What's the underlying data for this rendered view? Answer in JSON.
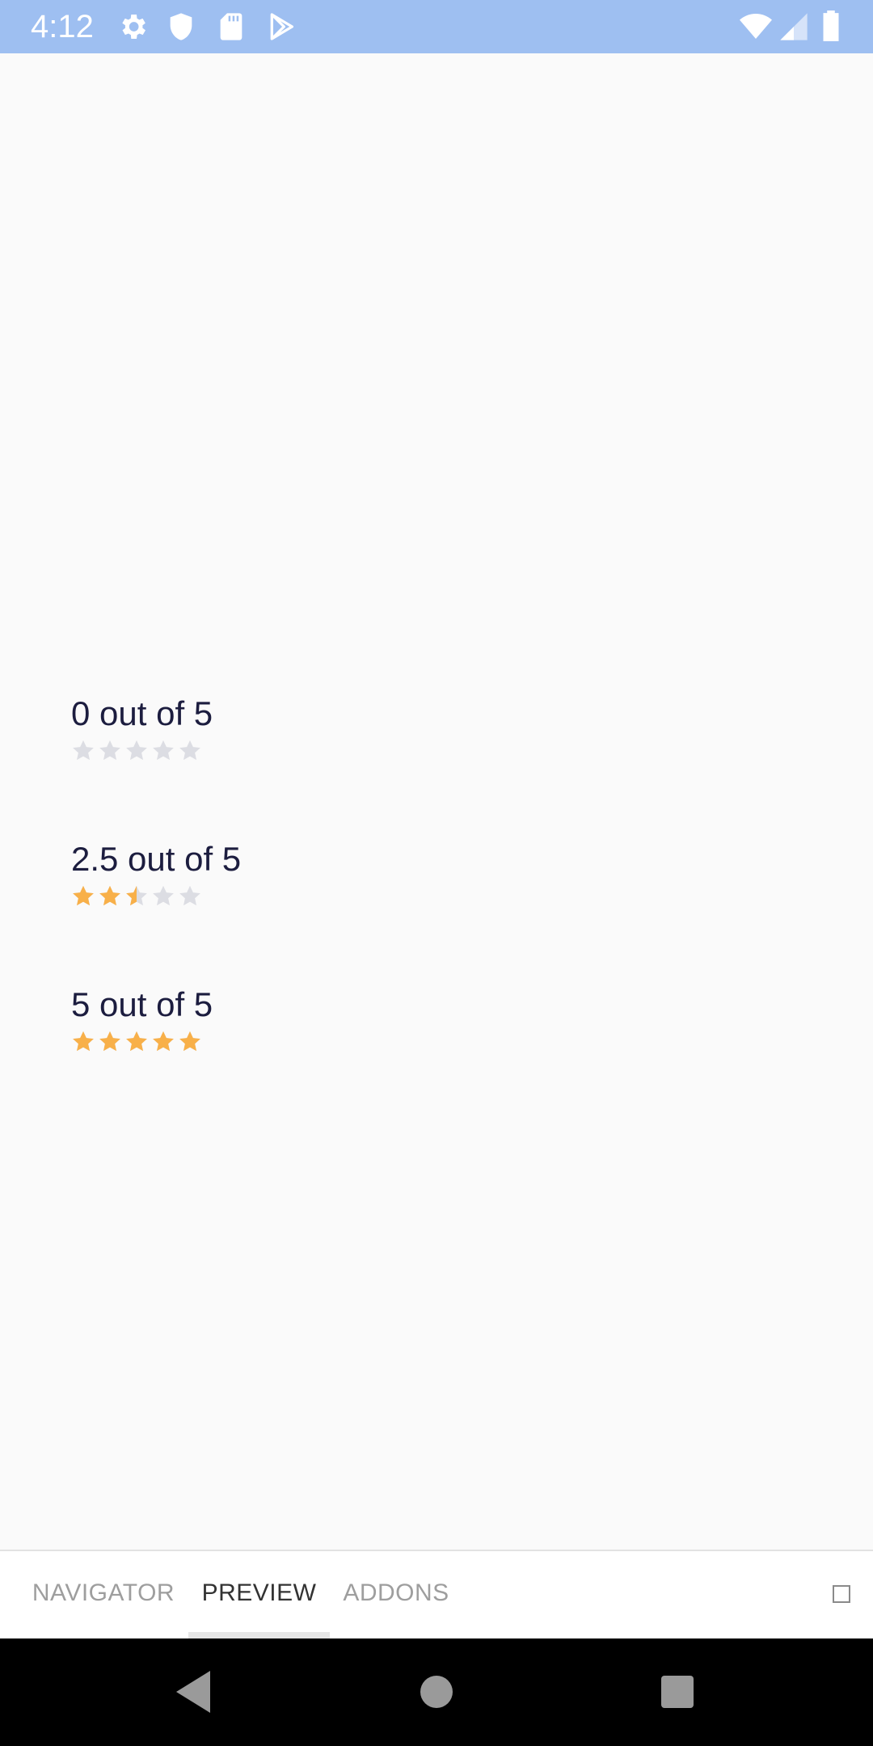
{
  "status_bar": {
    "time": "4:12",
    "left_icons": [
      "gear-icon",
      "shield-icon",
      "sd-card-icon",
      "play-store-icon"
    ],
    "right_icons": [
      "wifi-icon",
      "signal-icon",
      "battery-icon"
    ]
  },
  "ratings": [
    {
      "label": "0 out of 5",
      "value": 0,
      "max": 5
    },
    {
      "label": "2.5 out of 5",
      "value": 2.5,
      "max": 5
    },
    {
      "label": "5 out of 5",
      "value": 5,
      "max": 5
    }
  ],
  "colors": {
    "star_filled": "#f8b049",
    "star_empty": "#dcdde3",
    "status_bar": "#9ebff1"
  },
  "tabs": {
    "navigator": "NAVIGATOR",
    "preview": "PREVIEW",
    "addons": "ADDONS",
    "active": "preview"
  },
  "nav": {
    "icons": [
      "back-icon",
      "home-icon",
      "recents-icon"
    ]
  }
}
